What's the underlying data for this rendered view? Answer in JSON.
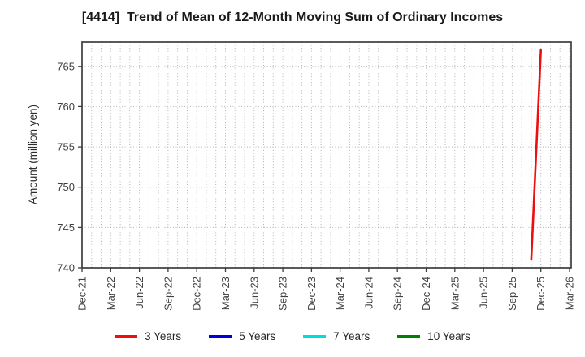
{
  "title": "[4414]  Trend of Mean of 12-Month Moving Sum of Ordinary Incomes",
  "chart_data": {
    "type": "line",
    "title": "[4414]  Trend of Mean of 12-Month Moving Sum of Ordinary Incomes",
    "ylabel": "Amount (million yen)",
    "ylim": [
      740,
      768
    ],
    "yticks": [
      740,
      745,
      750,
      755,
      760,
      765
    ],
    "x_tick_labels": [
      "Dec-21",
      "Mar-22",
      "Jun-22",
      "Sep-22",
      "Dec-22",
      "Mar-23",
      "Jun-23",
      "Sep-23",
      "Dec-23",
      "Mar-24",
      "Jun-24",
      "Sep-24",
      "Dec-24",
      "Mar-25",
      "Jun-25",
      "Sep-25",
      "Dec-25",
      "Mar-26"
    ],
    "months_per_tick": 3,
    "total_months": 51,
    "grid": "dotted, monthly vertical lines and horizontal lines at each y tick",
    "legend_position": "bottom",
    "series": [
      {
        "name": "3 Years",
        "color": "#ee0e0e",
        "points": [
          {
            "x_label": "Nov-25",
            "month_index": 47,
            "value": 741
          },
          {
            "x_label": "Dec-25",
            "month_index": 48,
            "value": 767
          }
        ]
      },
      {
        "name": "5 Years",
        "color": "#0000dd",
        "points": []
      },
      {
        "name": "7 Years",
        "color": "#00dddd",
        "points": []
      },
      {
        "name": "10 Years",
        "color": "#008000",
        "points": []
      }
    ]
  },
  "colors": {
    "background": "#ffffff",
    "grid": "#b3b3b3",
    "spine": "#3d3d3d",
    "tick_text": "#404040",
    "title_text": "#1a1a1a"
  }
}
